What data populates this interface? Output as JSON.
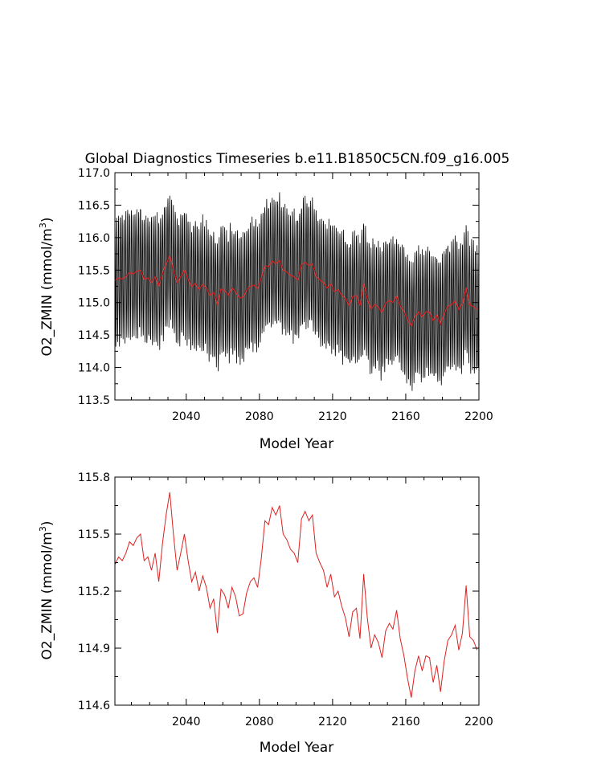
{
  "chart_data": [
    {
      "type": "line",
      "title": "Global Diagnostics Timeseries b.e11.B1850C5CN.f09_g16.005",
      "xlabel": "Model Year",
      "ylabel_main": "O2_ZMIN (mmol/m",
      "ylabel_sup": "3",
      "ylabel_close": ")",
      "xlim": [
        2001,
        2200
      ],
      "ylim": [
        113.5,
        117.0
      ],
      "xticks": [
        "2040",
        "2080",
        "2120",
        "2160",
        "2200"
      ],
      "yticks": [
        "113.5",
        "114.0",
        "114.5",
        "115.0",
        "115.5",
        "116.0",
        "116.5",
        "117.0"
      ],
      "series": [
        {
          "color": "#000000",
          "kind": "monthly seasonal cycle, amplitude ~1.0 around annual mean",
          "x_start": 2001,
          "x_end": 2200,
          "note": "annual mean ± seasonal envelope"
        },
        {
          "color": "#dd2222",
          "kind": "annual mean (same as lower panel)"
        }
      ]
    },
    {
      "type": "line",
      "title": "",
      "xlabel": "Model Year",
      "ylabel_main": "O2_ZMIN (mmol/m",
      "ylabel_sup": "3",
      "ylabel_close": ")",
      "xlim": [
        2001,
        2200
      ],
      "ylim": [
        114.6,
        115.8
      ],
      "xticks": [
        "2040",
        "2080",
        "2120",
        "2160",
        "2200"
      ],
      "yticks": [
        "114.6",
        "114.9",
        "115.2",
        "115.5",
        "115.8"
      ],
      "series": [
        {
          "color": "#dd2222",
          "x": [
            2001,
            2003,
            2005,
            2007,
            2009,
            2011,
            2013,
            2015,
            2017,
            2019,
            2021,
            2023,
            2025,
            2027,
            2029,
            2031,
            2033,
            2035,
            2037,
            2039,
            2041,
            2043,
            2045,
            2047,
            2049,
            2051,
            2053,
            2055,
            2057,
            2059,
            2061,
            2063,
            2065,
            2067,
            2069,
            2071,
            2073,
            2075,
            2077,
            2079,
            2081,
            2083,
            2085,
            2087,
            2089,
            2091,
            2093,
            2095,
            2097,
            2099,
            2101,
            2103,
            2105,
            2107,
            2109,
            2111,
            2113,
            2115,
            2117,
            2119,
            2121,
            2123,
            2125,
            2127,
            2129,
            2131,
            2133,
            2135,
            2137,
            2139,
            2141,
            2143,
            2145,
            2147,
            2149,
            2151,
            2153,
            2155,
            2157,
            2159,
            2161,
            2163,
            2165,
            2167,
            2169,
            2171,
            2173,
            2175,
            2177,
            2179,
            2181,
            2183,
            2185,
            2187,
            2189,
            2191,
            2193,
            2195,
            2197,
            2199
          ],
          "y": [
            115.34,
            115.38,
            115.36,
            115.4,
            115.46,
            115.44,
            115.48,
            115.5,
            115.36,
            115.38,
            115.31,
            115.4,
            115.25,
            115.45,
            115.6,
            115.72,
            115.5,
            115.31,
            115.4,
            115.5,
            115.36,
            115.25,
            115.3,
            115.2,
            115.28,
            115.22,
            115.11,
            115.16,
            114.98,
            115.21,
            115.18,
            115.11,
            115.22,
            115.17,
            115.07,
            115.08,
            115.19,
            115.25,
            115.27,
            115.22,
            115.37,
            115.57,
            115.55,
            115.64,
            115.6,
            115.65,
            115.5,
            115.47,
            115.42,
            115.4,
            115.35,
            115.58,
            115.62,
            115.57,
            115.6,
            115.4,
            115.35,
            115.31,
            115.22,
            115.29,
            115.17,
            115.2,
            115.12,
            115.06,
            114.96,
            115.09,
            115.11,
            114.95,
            115.29,
            115.06,
            114.9,
            114.97,
            114.93,
            114.85,
            114.99,
            115.03,
            115.0,
            115.1,
            114.95,
            114.86,
            114.74,
            114.64,
            114.78,
            114.86,
            114.78,
            114.86,
            114.85,
            114.72,
            114.81,
            114.67,
            114.83,
            114.94,
            114.97,
            115.02,
            114.89,
            114.98,
            115.23,
            114.96,
            114.94,
            114.89
          ]
        }
      ]
    }
  ]
}
